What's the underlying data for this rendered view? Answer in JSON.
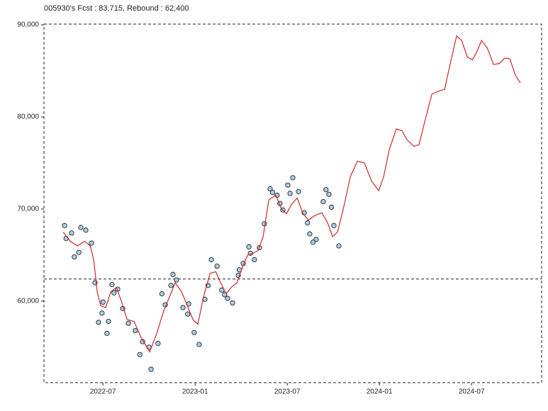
{
  "chart_data": {
    "type": "scatter",
    "title": "005930's Fcst : 83,715, Rebound : 62,400",
    "xlim": [
      2022.18,
      2024.88
    ],
    "ylim": [
      51150,
      90080
    ],
    "xticks": [
      {
        "value": 2022.5,
        "label": "2022-07"
      },
      {
        "value": 2023.0,
        "label": "2023-01"
      },
      {
        "value": 2023.5,
        "label": "2023-07"
      },
      {
        "value": 2024.0,
        "label": "2024-01"
      },
      {
        "value": 2024.5,
        "label": "2024-07"
      }
    ],
    "yticks": [
      {
        "value": 60000,
        "label": "60,000"
      },
      {
        "value": 70000,
        "label": "70,000"
      },
      {
        "value": 80000,
        "label": "80,000"
      },
      {
        "value": 90000,
        "label": "90,000"
      }
    ],
    "hline": 62400,
    "series": [
      {
        "type": "scatter",
        "color": "#a9cde6",
        "x": [
          2022.292,
          2022.33,
          2022.369,
          2022.407,
          2022.438,
          2022.457,
          2022.476,
          2022.495,
          2022.522,
          2022.549,
          2022.58,
          2022.607,
          2022.638,
          2022.676,
          2022.715,
          2022.761,
          2022.799,
          2022.838,
          2022.869,
          2022.899,
          2022.934,
          2022.965,
          2022.995,
          2023.022,
          2023.053,
          2023.088,
          2023.119,
          2023.145,
          2023.176,
          2023.203,
          2023.234,
          2023.261,
          2023.292,
          2023.322,
          2023.349,
          2023.376,
          2023.407,
          2023.445,
          2023.476,
          2023.503,
          2023.53,
          2023.561,
          2023.592,
          2023.622,
          2023.657,
          2023.695,
          2023.726,
          2023.753,
          2023.78,
          2022.3,
          2022.345,
          2022.38,
          2022.5,
          2022.53,
          2022.56,
          2022.7,
          2022.75,
          2022.82,
          2022.88,
          2022.96,
          2023.07,
          2023.16,
          2023.24,
          2023.3,
          2023.42,
          2023.46,
          2023.515,
          2023.61,
          2023.64,
          2023.71,
          2023.74
        ],
        "values": [
          68200,
          67400,
          65300,
          67700,
          66300,
          62000,
          57700,
          58700,
          56500,
          61800,
          61300,
          59200,
          57600,
          56800,
          55600,
          52600,
          55400,
          59600,
          61700,
          62300,
          59300,
          59700,
          56600,
          55300,
          60200,
          64500,
          63800,
          61200,
          60300,
          59800,
          62800,
          64100,
          65900,
          64500,
          65800,
          68400,
          72200,
          71500,
          69900,
          72600,
          73400,
          71900,
          69600,
          67300,
          66700,
          70800,
          71600,
          68200,
          66000,
          66800,
          64800,
          68000,
          59900,
          57800,
          60900,
          54200,
          55000,
          60800,
          62900,
          58600,
          61700,
          60700,
          63400,
          65200,
          71800,
          70600,
          71700,
          68500,
          66400,
          72100,
          70200
        ]
      },
      {
        "type": "line",
        "color": "#cc2a2a",
        "x": [
          2022.285,
          2022.323,
          2022.362,
          2022.4,
          2022.431,
          2022.45,
          2022.469,
          2022.488,
          2022.515,
          2022.542,
          2022.573,
          2022.6,
          2022.631,
          2022.669,
          2022.708,
          2022.754,
          2022.792,
          2022.831,
          2022.862,
          2022.892,
          2022.927,
          2022.958,
          2022.988,
          2023.015,
          2023.046,
          2023.081,
          2023.112,
          2023.138,
          2023.169,
          2023.196,
          2023.227,
          2023.254,
          2023.285,
          2023.315,
          2023.342,
          2023.369,
          2023.4,
          2023.438,
          2023.469,
          2023.496,
          2023.523,
          2023.554,
          2023.585,
          2023.615,
          2023.65,
          2023.688,
          2023.719,
          2023.746,
          2023.773,
          2023.804,
          2023.842,
          2023.881,
          2023.919,
          2023.958,
          2023.996,
          2024.023,
          2024.054,
          2024.092,
          2024.123,
          2024.15,
          2024.188,
          2024.215,
          2024.246,
          2024.285,
          2024.323,
          2024.354,
          2024.381,
          2024.419,
          2024.446,
          2024.477,
          2024.504,
          2024.527,
          2024.554,
          2024.585,
          2024.619,
          2024.65,
          2024.681,
          2024.708,
          2024.738,
          2024.765
        ],
        "values": [
          67500,
          66500,
          66000,
          66500,
          66000,
          64500,
          61000,
          59500,
          59300,
          61000,
          61500,
          60000,
          58000,
          57800,
          56000,
          54500,
          56500,
          59000,
          60500,
          62000,
          61000,
          59500,
          58000,
          57500,
          60500,
          63000,
          63200,
          62000,
          60800,
          61500,
          62000,
          63500,
          65000,
          65200,
          65500,
          67000,
          71000,
          71500,
          70000,
          69500,
          70500,
          71200,
          69500,
          68800,
          69300,
          69600,
          68500,
          67000,
          67500,
          70000,
          73500,
          75200,
          75000,
          73000,
          72000,
          73500,
          76500,
          78700,
          78500,
          77500,
          76800,
          77000,
          79500,
          82500,
          82800,
          83000,
          85500,
          88800,
          88300,
          86500,
          86200,
          87000,
          88300,
          87500,
          85700,
          85800,
          86400,
          86300,
          84500,
          83700
        ]
      }
    ]
  }
}
